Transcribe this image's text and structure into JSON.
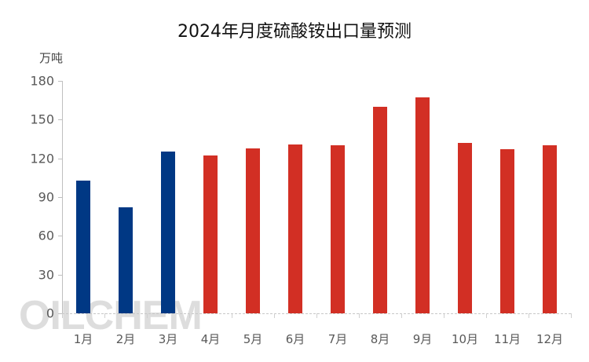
{
  "chart_data": {
    "type": "bar",
    "title": "2024年月度硫酸铵出口量预测",
    "xlabel": "",
    "ylabel": "万吨",
    "ylim": [
      0,
      180
    ],
    "yticks": [
      0,
      30,
      60,
      90,
      120,
      150,
      180
    ],
    "categories": [
      "1月",
      "2月",
      "3月",
      "4月",
      "5月",
      "6月",
      "7月",
      "8月",
      "9月",
      "10月",
      "11月",
      "12月"
    ],
    "values": [
      103,
      82,
      125,
      122,
      128,
      131,
      130,
      160,
      167,
      132,
      127,
      130
    ],
    "bar_colors": [
      "#003884",
      "#003884",
      "#003884",
      "#D22F24",
      "#D22F24",
      "#D22F24",
      "#D22F24",
      "#D22F24",
      "#D22F24",
      "#D22F24",
      "#D22F24",
      "#D22F24"
    ],
    "series_notes": {
      "actual_color": "#003884",
      "forecast_color": "#D22F24"
    },
    "grid": false,
    "legend": null
  },
  "watermark": "OILCHEM"
}
